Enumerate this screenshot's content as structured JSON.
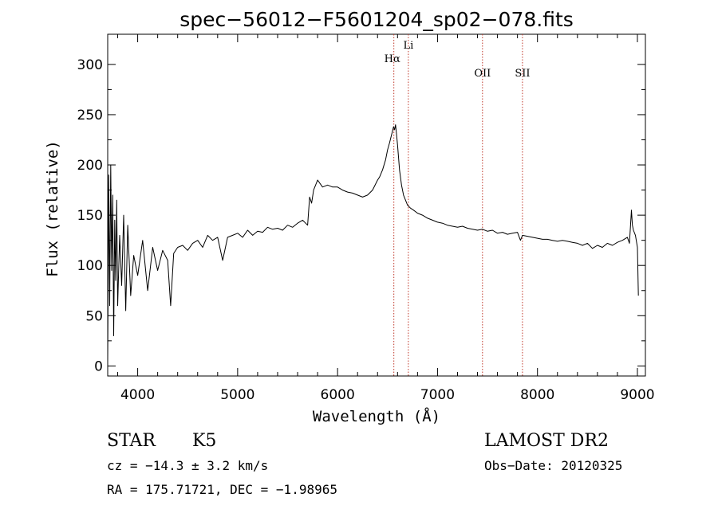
{
  "chart_data": {
    "type": "line",
    "title": "spec−56012−F5601204_sp02−078.fits",
    "xlabel": "Wavelength (Å)",
    "ylabel": "Flux (relative)",
    "xlim": [
      3700,
      9080
    ],
    "ylim": [
      -10,
      330
    ],
    "x_ticks": [
      4000,
      5000,
      6000,
      7000,
      8000,
      9000
    ],
    "y_ticks": [
      0,
      50,
      100,
      150,
      200,
      250,
      300
    ],
    "x_tick_labels": [
      "4000",
      "5000",
      "6000",
      "7000",
      "8000",
      "9000"
    ],
    "y_tick_labels": [
      "0",
      "50",
      "100",
      "150",
      "200",
      "250",
      "300"
    ],
    "grid": false,
    "series": [
      {
        "color": "#000000",
        "x": [
          3700,
          3710,
          3720,
          3730,
          3740,
          3750,
          3760,
          3770,
          3780,
          3790,
          3800,
          3820,
          3840,
          3860,
          3880,
          3900,
          3930,
          3960,
          4000,
          4050,
          4100,
          4150,
          4200,
          4250,
          4300,
          4330,
          4360,
          4400,
          4450,
          4500,
          4550,
          4600,
          4650,
          4700,
          4750,
          4800,
          4850,
          4900,
          4950,
          5000,
          5050,
          5100,
          5150,
          5200,
          5250,
          5300,
          5350,
          5400,
          5450,
          5500,
          5550,
          5600,
          5650,
          5700,
          5720,
          5740,
          5760,
          5780,
          5800,
          5850,
          5900,
          5950,
          6000,
          6050,
          6100,
          6150,
          6200,
          6250,
          6300,
          6350,
          6400,
          6420,
          6450,
          6480,
          6500,
          6520,
          6540,
          6560,
          6570,
          6580,
          6590,
          6600,
          6620,
          6640,
          6660,
          6680,
          6700,
          6730,
          6760,
          6800,
          6850,
          6900,
          6950,
          7000,
          7050,
          7100,
          7150,
          7200,
          7250,
          7300,
          7350,
          7400,
          7450,
          7500,
          7550,
          7600,
          7650,
          7700,
          7750,
          7800,
          7830,
          7850,
          7900,
          7950,
          8000,
          8050,
          8100,
          8150,
          8200,
          8250,
          8300,
          8350,
          8400,
          8450,
          8500,
          8550,
          8600,
          8650,
          8700,
          8750,
          8800,
          8850,
          8900,
          8920,
          8940,
          8950,
          8960,
          8980,
          9000,
          9010
        ],
        "y": [
          5,
          190,
          60,
          200,
          95,
          170,
          30,
          145,
          85,
          165,
          60,
          130,
          80,
          150,
          55,
          140,
          70,
          110,
          90,
          125,
          75,
          118,
          95,
          115,
          105,
          60,
          112,
          118,
          120,
          115,
          122,
          125,
          118,
          130,
          125,
          128,
          105,
          128,
          130,
          132,
          128,
          135,
          130,
          134,
          133,
          138,
          136,
          137,
          135,
          140,
          138,
          142,
          145,
          140,
          168,
          162,
          175,
          180,
          185,
          178,
          180,
          178,
          178,
          175,
          173,
          172,
          170,
          168,
          170,
          175,
          185,
          188,
          195,
          205,
          215,
          222,
          230,
          238,
          235,
          240,
          230,
          220,
          195,
          180,
          170,
          165,
          160,
          157,
          155,
          152,
          150,
          147,
          145,
          143,
          142,
          140,
          139,
          138,
          139,
          137,
          136,
          135,
          136,
          134,
          135,
          132,
          133,
          131,
          132,
          133,
          125,
          130,
          129,
          128,
          127,
          126,
          126,
          125,
          124,
          125,
          124,
          123,
          122,
          120,
          122,
          117,
          120,
          118,
          122,
          120,
          123,
          125,
          128,
          122,
          155,
          140,
          135,
          130,
          118,
          70
        ]
      }
    ],
    "annotations": [
      {
        "label": "Hα",
        "x": 6563
      },
      {
        "label": "Li",
        "x": 6708
      },
      {
        "label": "OII",
        "x": 7450
      },
      {
        "label": "SII",
        "x": 7850
      }
    ]
  },
  "info": {
    "object_class": "STAR",
    "subclass": "K5",
    "survey": "LAMOST DR2",
    "cz": "cz = −14.3 ± 3.2 km/s",
    "obs_date": "Obs−Date: 20120325",
    "coords": "RA = 175.71721, DEC =  −1.98965"
  }
}
